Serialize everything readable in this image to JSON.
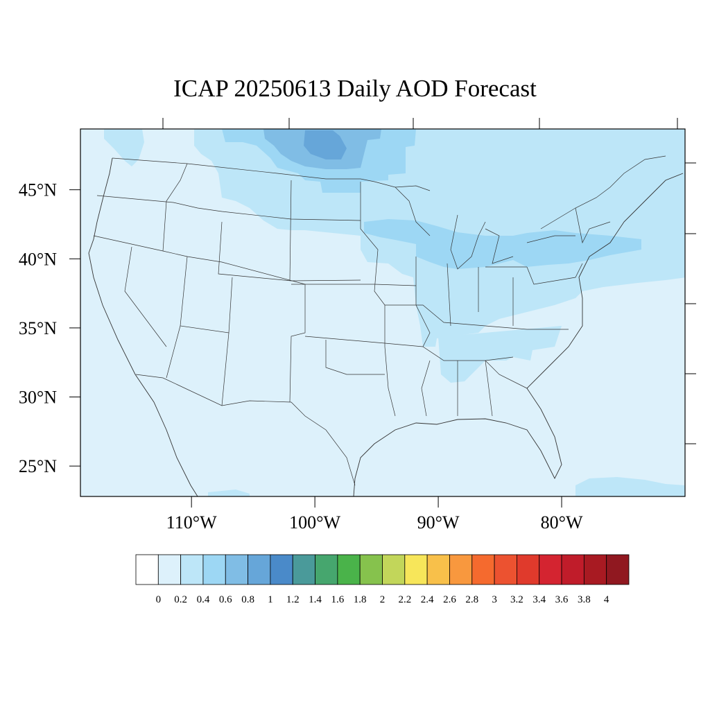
{
  "title": "ICAP 20250613 Daily AOD Forecast",
  "map": {
    "lon_range": [
      -119,
      -70
    ],
    "lat_range": [
      22.8,
      49.4
    ],
    "lat_ticks": [
      {
        "value": 45,
        "label": "45°N"
      },
      {
        "value": 40,
        "label": "40°N"
      },
      {
        "value": 35,
        "label": "35°N"
      },
      {
        "value": 30,
        "label": "30°N"
      },
      {
        "value": 25,
        "label": "25°N"
      }
    ],
    "lon_ticks": [
      {
        "value": -110,
        "label": "110°W"
      },
      {
        "value": -100,
        "label": "100°W"
      },
      {
        "value": -90,
        "label": "90°W"
      },
      {
        "value": -80,
        "label": "80°W"
      }
    ],
    "background_level_color": "#ddf1fb"
  },
  "colorbar": {
    "colors": [
      "#ffffff",
      "#ddf1fb",
      "#bde6f8",
      "#9dd7f4",
      "#80bde5",
      "#66a6d9",
      "#4a8ac9",
      "#4a9a9a",
      "#46a66e",
      "#4ab34a",
      "#86c24d",
      "#c2d65a",
      "#f7e65a",
      "#f8c04a",
      "#f8983e",
      "#f56a2e",
      "#ec5230",
      "#e03a2c",
      "#d42430",
      "#c01c2a",
      "#a81a22",
      "#901820"
    ],
    "labels": [
      "0",
      "0.2",
      "0.4",
      "0.6",
      "0.8",
      "1",
      "1.2",
      "1.4",
      "1.6",
      "1.8",
      "2",
      "2.2",
      "2.4",
      "2.6",
      "2.8",
      "3",
      "3.2",
      "3.4",
      "3.6",
      "3.8",
      "4"
    ]
  }
}
